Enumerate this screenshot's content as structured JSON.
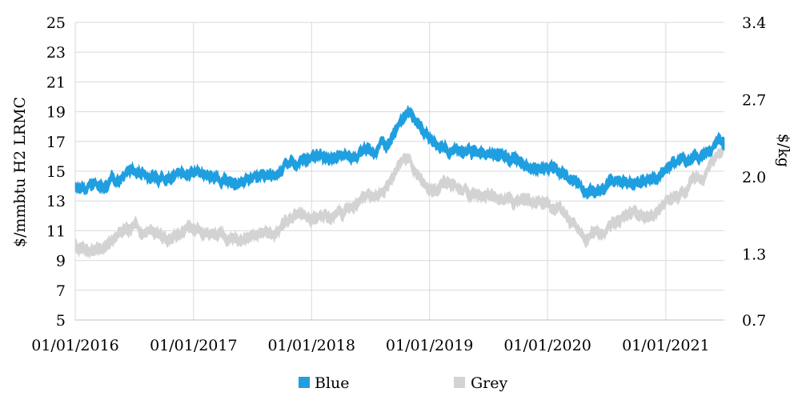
{
  "chart_data": {
    "type": "area",
    "title": "",
    "xlabel": "",
    "ylabel": "$/mmbtu H2 LRMC",
    "ylabel_right": "$/kg",
    "ylim": [
      5,
      25
    ],
    "y2lim": [
      0.7,
      3.4
    ],
    "yticks": [
      5,
      7,
      9,
      11,
      13,
      15,
      17,
      19,
      21,
      23,
      25
    ],
    "y2ticks": [
      "0.7",
      "1.3",
      "2.0",
      "2.7",
      "3.4"
    ],
    "xlim": [
      "2016-01-01",
      "2021-07-01"
    ],
    "xticks": [
      {
        "date": "2016-01-01",
        "label": "01/01/2016"
      },
      {
        "date": "2017-01-01",
        "label": "01/01/2017"
      },
      {
        "date": "2018-01-01",
        "label": "01/01/2018"
      },
      {
        "date": "2019-01-01",
        "label": "01/01/2019"
      },
      {
        "date": "2020-01-01",
        "label": "01/01/2020"
      },
      {
        "date": "2021-01-01",
        "label": "01/01/2021"
      }
    ],
    "grid": "vertical",
    "legend": "bottom",
    "series": [
      {
        "name": "Blue",
        "color": "#1f9fe0",
        "band_width": 0.7,
        "x": [
          "2016-01-01",
          "2016-02-01",
          "2016-03-15",
          "2016-04-15",
          "2016-06-01",
          "2016-07-15",
          "2016-09-01",
          "2016-10-15",
          "2016-12-01",
          "2017-01-15",
          "2017-03-01",
          "2017-04-15",
          "2017-06-01",
          "2017-07-15",
          "2017-09-01",
          "2017-10-15",
          "2017-12-01",
          "2018-01-15",
          "2018-03-01",
          "2018-04-15",
          "2018-06-01",
          "2018-07-15",
          "2018-09-01",
          "2018-10-01",
          "2018-11-01",
          "2018-12-15",
          "2019-02-01",
          "2019-03-15",
          "2019-05-01",
          "2019-06-15",
          "2019-08-01",
          "2019-09-15",
          "2019-11-01",
          "2019-12-15",
          "2020-02-01",
          "2020-03-01",
          "2020-04-01",
          "2020-05-01",
          "2020-06-15",
          "2020-08-01",
          "2020-09-15",
          "2020-11-01",
          "2020-12-15",
          "2021-02-01",
          "2021-03-15",
          "2021-05-01",
          "2021-06-01",
          "2021-07-01"
        ],
        "values": [
          14.0,
          13.8,
          13.8,
          14.0,
          14.9,
          14.8,
          14.6,
          14.4,
          14.7,
          14.9,
          14.5,
          14.3,
          14.2,
          14.3,
          14.8,
          15.5,
          15.7,
          15.9,
          16.0,
          16.0,
          16.3,
          16.5,
          17.0,
          18.0,
          18.7,
          17.4,
          16.7,
          16.4,
          16.2,
          16.0,
          15.9,
          15.6,
          15.4,
          15.5,
          15.2,
          14.8,
          14.0,
          13.4,
          13.7,
          14.4,
          14.7,
          14.6,
          15.0,
          15.6,
          15.8,
          16.1,
          16.9,
          17.3
        ]
      },
      {
        "name": "Grey",
        "color": "#d3d3d3",
        "band_width": 0.7,
        "x": [
          "2016-01-01",
          "2016-02-01",
          "2016-03-15",
          "2016-04-15",
          "2016-06-01",
          "2016-07-15",
          "2016-09-01",
          "2016-10-15",
          "2016-12-01",
          "2017-01-15",
          "2017-03-01",
          "2017-04-15",
          "2017-06-01",
          "2017-07-15",
          "2017-09-01",
          "2017-10-15",
          "2017-12-01",
          "2018-01-15",
          "2018-03-01",
          "2018-04-15",
          "2018-06-01",
          "2018-07-15",
          "2018-09-01",
          "2018-10-01",
          "2018-11-01",
          "2018-12-15",
          "2019-02-01",
          "2019-03-15",
          "2019-05-01",
          "2019-06-15",
          "2019-08-01",
          "2019-09-15",
          "2019-11-01",
          "2019-12-15",
          "2020-02-01",
          "2020-03-01",
          "2020-04-01",
          "2020-05-01",
          "2020-06-15",
          "2020-08-01",
          "2020-09-15",
          "2020-11-01",
          "2020-12-15",
          "2021-02-01",
          "2021-03-15",
          "2021-05-01",
          "2021-06-01",
          "2021-07-01"
        ],
        "values": [
          10.1,
          9.8,
          9.9,
          10.2,
          11.1,
          11.0,
          10.8,
          10.7,
          11.0,
          11.0,
          10.7,
          10.6,
          10.5,
          10.6,
          11.0,
          11.5,
          11.8,
          12.0,
          11.9,
          12.3,
          13.1,
          13.5,
          14.5,
          15.4,
          15.8,
          14.0,
          13.8,
          13.9,
          13.6,
          13.4,
          13.6,
          13.2,
          13.0,
          12.9,
          12.6,
          12.3,
          11.2,
          10.6,
          11.0,
          11.6,
          12.0,
          12.1,
          12.5,
          13.4,
          13.9,
          14.6,
          15.8,
          16.6
        ]
      }
    ]
  }
}
